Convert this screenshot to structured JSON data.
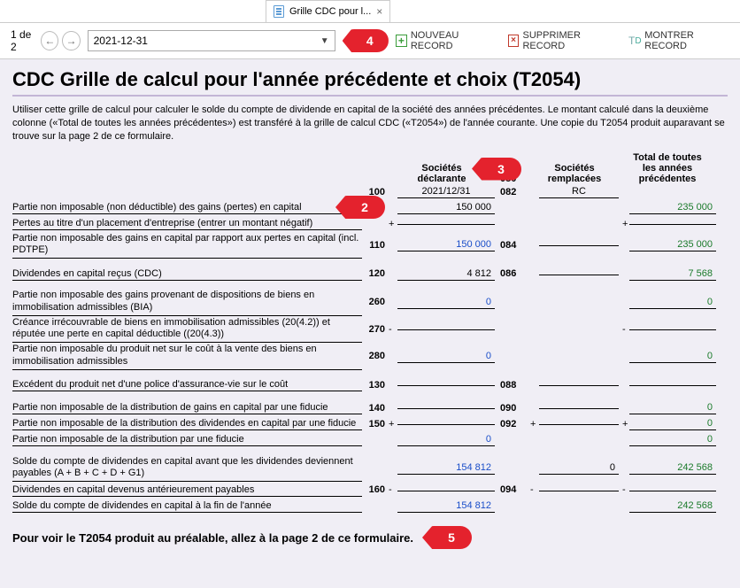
{
  "tab": {
    "title": "Grille CDC pour l...",
    "close": "×"
  },
  "pager": {
    "label": "1 de 2"
  },
  "dateSelect": "2021-12-31",
  "markers": {
    "m2": "2",
    "m3": "3",
    "m4": "4",
    "m5": "5"
  },
  "actions": {
    "new": "NOUVEAU RECORD",
    "del": "SUPPRIMER RECORD",
    "show": "MONTRER RECORD"
  },
  "title": "CDC Grille de calcul pour l'année précédente et choix (T2054)",
  "intro": "Utiliser cette grille de calcul pour calculer le solde du compte de dividende en capital de la société des années précédentes. Le montant calculé dans la deuxième colonne («Total de toutes les années précédentes») est transféré à la grille de calcul CDC («T2054») de l'année courante. Une copie du T2054 produit auparavant se trouve sur la page 2 de ce formulaire.",
  "headers": {
    "colA": "Sociétés\ndéclarante",
    "colB": "Sociétés\nremplacées",
    "colC": "Total de toutes\nles années\nprécédentes",
    "code100": "100",
    "val100": "2021/12/31",
    "code080": "080",
    "code082": "082",
    "valRC": "RC"
  },
  "rows": [
    {
      "lbl": "Partie non imposable (non déductible) des gains (pertes) en capital",
      "valA": "150 000",
      "valAClass": "",
      "opC": "",
      "valC": "235 000",
      "valCClass": "green"
    },
    {
      "lbl": "Pertes au titre d'un placement d'entreprise (entrer un montant négatif)",
      "opA": "+",
      "valA": "",
      "opC": "+",
      "valC": ""
    },
    {
      "lbl": "Partie non imposable des gains en capital par rapport aux pertes en capital (incl. PDTPE)",
      "multi": true,
      "codeA": "110",
      "valA": "150 000",
      "valAClass": "blue",
      "codeB": "084",
      "valB": "",
      "valC": "235 000",
      "valCClass": "green"
    },
    {
      "spacer": true
    },
    {
      "lbl": "Dividendes en capital reçus (CDC)",
      "codeA": "120",
      "valA": "4 812",
      "codeB": "086",
      "valB": "",
      "valC": "7 568",
      "valCClass": "green"
    },
    {
      "spacer": true
    },
    {
      "lbl": "Partie non imposable des gains provenant de dispositions de biens en immobilisation admissibles (BIA)",
      "multi": true,
      "codeA": "260",
      "valA": "0",
      "valAClass": "blue",
      "valC": "0",
      "valCClass": "green"
    },
    {
      "lbl": "Créance irrécouvrable de biens en immobilisation admissibles (20(4.2)) et réputée une perte en capital déductible ((20(4.3))",
      "multi": true,
      "codeA": "270",
      "opA": "-",
      "valA": "",
      "opC": "-",
      "valC": ""
    },
    {
      "lbl": "Partie non imposable du produit net sur le coût à la vente des biens en immobilisation admissibles",
      "multi": true,
      "codeA": "280",
      "valA": "0",
      "valAClass": "blue",
      "valC": "0",
      "valCClass": "green"
    },
    {
      "spacer": true
    },
    {
      "lbl": "Excédent du produit net d'une police d'assurance-vie sur le coût",
      "codeA": "130",
      "valA": "",
      "codeB": "088",
      "valB": "",
      "valC": ""
    },
    {
      "spacer": true
    },
    {
      "lbl": "Partie non imposable de la distribution de gains en capital par une fiducie",
      "codeA": "140",
      "valA": "",
      "codeB": "090",
      "valB": "",
      "valC": "0",
      "valCClass": "green"
    },
    {
      "lbl": "Partie non imposable de la distribution des dividendes en capital par une fiducie",
      "codeA": "150",
      "opA": "+",
      "valA": "",
      "codeB": "092",
      "opB": "+",
      "valB": "",
      "opC": "+",
      "valC": "0",
      "valCClass": "green"
    },
    {
      "lbl": "Partie non imposable de la distribution par une fiducie",
      "valA": "0",
      "valAClass": "blue",
      "valC": "0",
      "valCClass": "green"
    },
    {
      "spacer": true
    },
    {
      "lbl": "Solde du compte de dividendes en capital avant que les dividendes deviennent payables (A + B + C + D + G1)",
      "multi": true,
      "valA": "154 812",
      "valAClass": "blue",
      "valB": "0",
      "valC": "242 568",
      "valCClass": "green"
    },
    {
      "lbl": "Dividendes en capital devenus antérieurement payables",
      "codeA": "160",
      "opA": "-",
      "valA": "",
      "codeB": "094",
      "opB": "-",
      "valB": "",
      "opC": "-",
      "valC": ""
    },
    {
      "lbl": "Solde du compte de dividendes en capital à la fin de l'année",
      "valA": "154 812",
      "valAClass": "blue",
      "valC": "242 568",
      "valCClass": "green"
    }
  ],
  "footnote": "Pour voir le T2054 produit au préalable, allez à la page 2 de ce formulaire."
}
